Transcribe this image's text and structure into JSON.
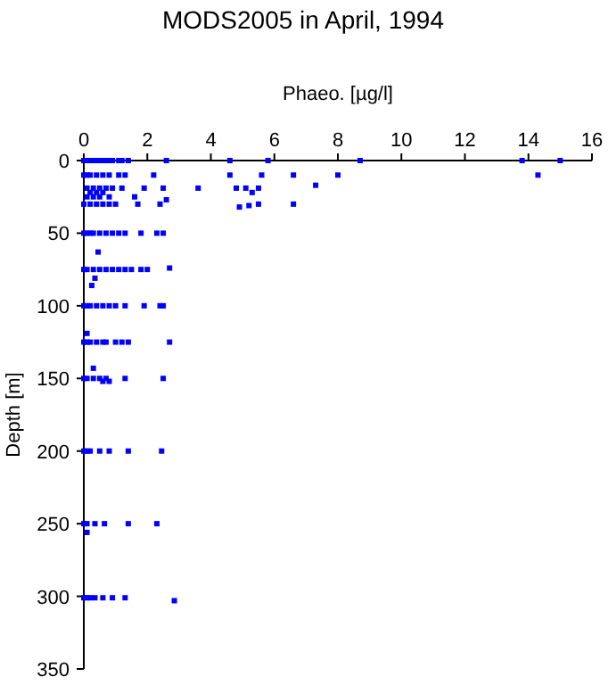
{
  "chart_data": {
    "type": "scatter",
    "title": "MODS2005 in April, 1994",
    "xlabel": "Phaeo. [µg/l]",
    "ylabel": "Depth [m]",
    "xlim": [
      0,
      16
    ],
    "xticks": [
      0,
      2,
      4,
      6,
      8,
      10,
      12,
      14,
      16
    ],
    "ylim": [
      350,
      0
    ],
    "yticks": [
      0,
      50,
      100,
      150,
      200,
      250,
      300,
      350
    ],
    "marker": "square",
    "grid": false,
    "series": [
      {
        "color": "#0000ff",
        "x": [
          0,
          0.1,
          0.2,
          0.3,
          0.4,
          0.5,
          0.6,
          0.7,
          0.8,
          0.9,
          1.1,
          1.2,
          1.4,
          2.6,
          4.6,
          5.8,
          8.7,
          13.8,
          15.0,
          0,
          0.1,
          0.2,
          0.4,
          0.6,
          0.8,
          1.1,
          1.3,
          2.2,
          4.6,
          5.6,
          6.6,
          8.0,
          14.3,
          0.1,
          0.3,
          0.5,
          0.7,
          0.9,
          1.2,
          1.9,
          2.5,
          3.6,
          4.8,
          5.1,
          5.5,
          7.3,
          0.2,
          0.4,
          0.6,
          5.3,
          0.1,
          0.3,
          0.5,
          0.8,
          1.6,
          2.6,
          0,
          0.2,
          0.4,
          0.6,
          0.8,
          1.0,
          1.7,
          2.4,
          5.5,
          6.6,
          4.9,
          5.2,
          0,
          0.1,
          0.2,
          0.3,
          0.5,
          0.7,
          0.9,
          1.1,
          1.3,
          1.8,
          2.3,
          2.5,
          0.45,
          0,
          0.1,
          0.3,
          0.5,
          0.7,
          0.9,
          1.1,
          1.3,
          1.5,
          1.8,
          2.0,
          2.7,
          0.35,
          0.25,
          0,
          0.1,
          0.2,
          0.4,
          0.6,
          0.8,
          1.0,
          1.3,
          1.9,
          2.4,
          2.5,
          0.1,
          0,
          0.1,
          0.2,
          0.4,
          0.6,
          0.7,
          1.0,
          1.2,
          1.4,
          2.7,
          0.3,
          0,
          0.1,
          0.3,
          0.5,
          0.7,
          1.3,
          2.5,
          0.6,
          0.8,
          0,
          0.1,
          0.2,
          0.5,
          0.8,
          1.4,
          2.45,
          0,
          0.1,
          0.35,
          0.65,
          1.4,
          2.3,
          0.1,
          0,
          0.1,
          0.2,
          0.35,
          0.6,
          0.9,
          1.3,
          2.85
        ],
        "values": [
          0,
          0,
          0,
          0,
          0,
          0,
          0,
          0,
          0,
          0,
          0,
          0,
          0,
          0,
          0,
          0,
          0,
          0,
          0,
          10,
          10,
          10,
          10,
          10,
          10,
          10,
          10,
          10,
          10,
          10,
          10,
          10,
          10,
          19,
          19,
          19,
          19,
          19,
          19,
          19,
          19,
          19,
          19,
          19,
          19,
          17,
          22,
          22,
          22,
          22,
          25,
          25,
          25,
          25,
          25,
          27,
          30,
          30,
          30,
          30,
          30,
          30,
          30,
          30,
          30,
          30,
          32,
          31,
          50,
          50,
          50,
          50,
          50,
          50,
          50,
          50,
          50,
          50,
          50,
          50,
          63,
          75,
          75,
          75,
          75,
          75,
          75,
          75,
          75,
          75,
          75,
          75,
          74,
          81,
          86,
          100,
          100,
          100,
          100,
          100,
          100,
          100,
          100,
          100,
          100,
          100,
          119,
          125,
          125,
          125,
          125,
          125,
          125,
          125,
          125,
          125,
          125,
          143,
          150,
          150,
          150,
          150,
          150,
          150,
          150,
          152,
          152,
          200,
          200,
          200,
          200,
          200,
          200,
          200,
          250,
          250,
          250,
          250,
          250,
          250,
          256,
          301,
          301,
          301,
          301,
          301,
          301,
          301,
          303
        ]
      }
    ]
  }
}
